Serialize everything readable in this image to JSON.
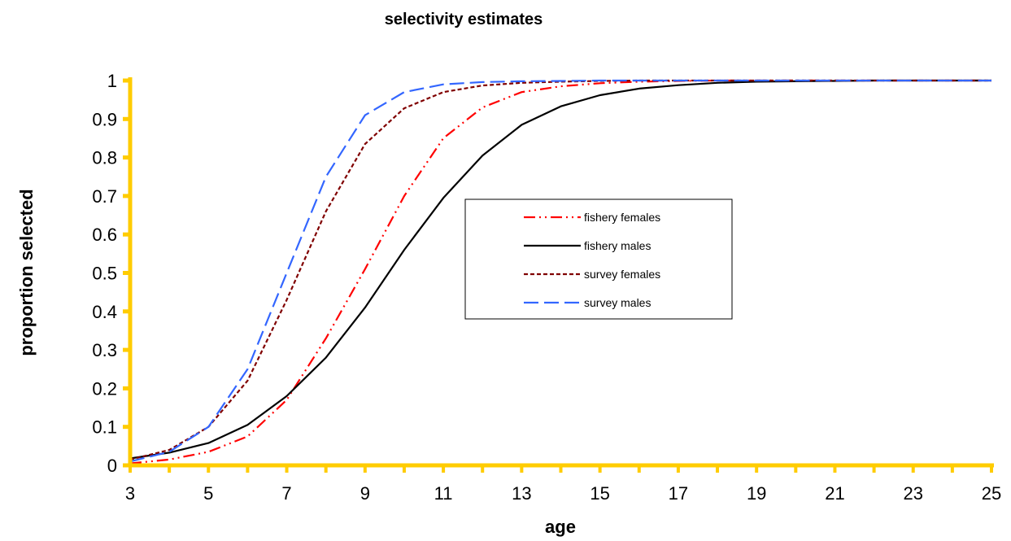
{
  "chart_data": {
    "type": "line",
    "title": "selectivity estimates",
    "xlabel": "age",
    "ylabel": "proportion selected",
    "xlim": [
      3,
      25
    ],
    "ylim": [
      0,
      1
    ],
    "x_ticks": [
      "3",
      "5",
      "7",
      "9",
      "11",
      "13",
      "15",
      "17",
      "19",
      "21",
      "23",
      "25"
    ],
    "y_ticks": [
      "0",
      "0.1",
      "0.2",
      "0.3",
      "0.4",
      "0.5",
      "0.6",
      "0.7",
      "0.8",
      "0.9",
      "1"
    ],
    "grid": false,
    "legend_position": "inside-right",
    "axis_color": "#FFCC00",
    "x": [
      3,
      4,
      5,
      6,
      7,
      8,
      9,
      10,
      11,
      12,
      13,
      14,
      15,
      16,
      17,
      18,
      19,
      20,
      21,
      22,
      23,
      24,
      25
    ],
    "series": [
      {
        "name": "fishery females",
        "color": "#FF0000",
        "dash": "dash-dot-dot",
        "values": [
          0.005,
          0.015,
          0.035,
          0.075,
          0.17,
          0.33,
          0.51,
          0.7,
          0.85,
          0.93,
          0.97,
          0.985,
          0.993,
          0.997,
          0.999,
          1,
          1,
          1,
          1,
          1,
          1,
          1,
          1
        ]
      },
      {
        "name": "fishery males",
        "color": "#000000",
        "dash": "solid",
        "values": [
          0.018,
          0.033,
          0.058,
          0.105,
          0.18,
          0.28,
          0.41,
          0.56,
          0.695,
          0.805,
          0.885,
          0.933,
          0.962,
          0.979,
          0.988,
          0.994,
          0.997,
          0.998,
          0.999,
          1,
          1,
          1,
          1
        ]
      },
      {
        "name": "survey females",
        "color": "#800000",
        "dash": "short-dash",
        "values": [
          0.015,
          0.04,
          0.1,
          0.22,
          0.43,
          0.66,
          0.835,
          0.928,
          0.97,
          0.987,
          0.994,
          0.997,
          0.999,
          1,
          1,
          1,
          1,
          1,
          1,
          1,
          1,
          1,
          1
        ]
      },
      {
        "name": "survey males",
        "color": "#3366FF",
        "dash": "long-dash",
        "values": [
          0.01,
          0.035,
          0.1,
          0.25,
          0.5,
          0.75,
          0.91,
          0.97,
          0.99,
          0.996,
          0.998,
          0.999,
          1,
          1,
          1,
          1,
          1,
          1,
          1,
          1,
          1,
          1,
          1
        ]
      }
    ]
  }
}
